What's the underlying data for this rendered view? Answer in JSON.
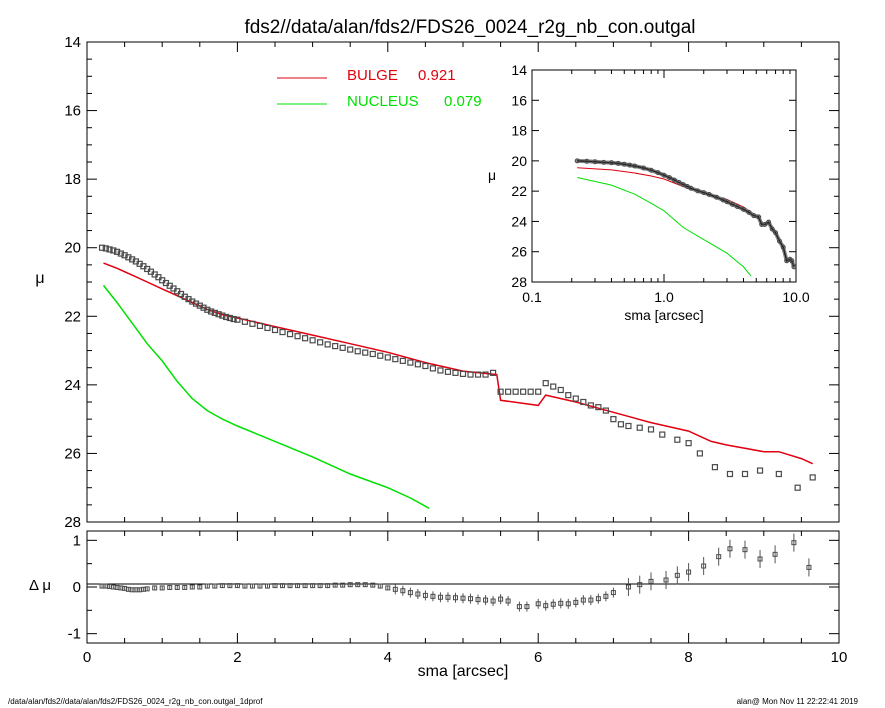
{
  "title": "fds2//data/alan/fds2/FDS26_0024_r2g_nb_con.outgal",
  "footer": {
    "left": "/data/alan/fds2//data/alan/fds2/FDS26_0024_r2g_nb_con.outgal_1dprof",
    "right": "alan@  Mon Nov 11 22:22:41 2019"
  },
  "colors": {
    "bulge": "#e0000f",
    "nucleus": "#00e000",
    "data_marker": "#4a4a4a",
    "axis": "#000000"
  },
  "chart_data": [
    {
      "id": "main",
      "type": "line",
      "xlabel": "sma [arcsec]",
      "ylabel": "μ",
      "xlim": [
        0,
        10
      ],
      "ylim": [
        28,
        14
      ],
      "x_ticks": [
        "0",
        "2",
        "4",
        "6",
        "8",
        "10"
      ],
      "y_ticks": [
        "14",
        "16",
        "18",
        "20",
        "22",
        "24",
        "26",
        "28"
      ],
      "legend": [
        {
          "name": "BULGE",
          "value": "0.921",
          "color": "#e0000f"
        },
        {
          "name": "NUCLEUS",
          "value": "0.079",
          "color": "#00e000"
        }
      ],
      "series": [
        {
          "name": "BULGE",
          "style": "line",
          "color": "#e0000f",
          "x": [
            0.22,
            0.4,
            0.6,
            0.8,
            1.0,
            1.2,
            1.4,
            1.6,
            1.8,
            2.0,
            2.5,
            3.0,
            3.5,
            4.0,
            4.5,
            5.0,
            5.45,
            5.5,
            6.0,
            6.1,
            6.5,
            7.0,
            7.5,
            8.0,
            8.3,
            8.5,
            9.0,
            9.2,
            9.5,
            9.65
          ],
          "y": [
            20.45,
            20.6,
            20.8,
            21.0,
            21.2,
            21.4,
            21.6,
            21.8,
            21.95,
            22.05,
            22.3,
            22.55,
            22.8,
            23.05,
            23.35,
            23.6,
            23.7,
            24.45,
            24.6,
            24.3,
            24.5,
            24.8,
            25.1,
            25.35,
            25.65,
            25.75,
            25.95,
            25.95,
            26.15,
            26.3
          ]
        },
        {
          "name": "NUCLEUS",
          "style": "line",
          "color": "#00e000",
          "x": [
            0.22,
            0.4,
            0.6,
            0.8,
            1.0,
            1.2,
            1.4,
            1.6,
            1.8,
            2.0,
            2.5,
            3.0,
            3.5,
            4.0,
            4.3,
            4.55
          ],
          "y": [
            21.1,
            21.6,
            22.2,
            22.8,
            23.3,
            23.9,
            24.4,
            24.75,
            25.0,
            25.2,
            25.65,
            26.1,
            26.6,
            27.0,
            27.3,
            27.6
          ]
        },
        {
          "name": "data",
          "style": "markers",
          "color": "#4a4a4a",
          "x": [
            0.2,
            0.25,
            0.3,
            0.35,
            0.4,
            0.45,
            0.5,
            0.55,
            0.6,
            0.65,
            0.7,
            0.75,
            0.8,
            0.85,
            0.9,
            0.95,
            1.0,
            1.05,
            1.1,
            1.15,
            1.2,
            1.25,
            1.3,
            1.35,
            1.4,
            1.45,
            1.5,
            1.55,
            1.6,
            1.65,
            1.7,
            1.75,
            1.8,
            1.85,
            1.9,
            1.95,
            2.0,
            2.1,
            2.2,
            2.3,
            2.4,
            2.5,
            2.6,
            2.7,
            2.8,
            2.9,
            3.0,
            3.1,
            3.2,
            3.3,
            3.4,
            3.5,
            3.6,
            3.7,
            3.8,
            3.9,
            4.0,
            4.1,
            4.2,
            4.3,
            4.4,
            4.5,
            4.6,
            4.7,
            4.8,
            4.9,
            5.0,
            5.1,
            5.2,
            5.3,
            5.4,
            5.5,
            5.6,
            5.7,
            5.8,
            5.9,
            6.0,
            6.1,
            6.2,
            6.3,
            6.4,
            6.5,
            6.6,
            6.7,
            6.8,
            6.9,
            7.0,
            7.1,
            7.2,
            7.35,
            7.5,
            7.65,
            7.85,
            8.0,
            8.15,
            8.35,
            8.55,
            8.75,
            8.95,
            9.2,
            9.45,
            9.65
          ],
          "y": [
            20.0,
            20.02,
            20.05,
            20.08,
            20.12,
            20.17,
            20.22,
            20.28,
            20.34,
            20.4,
            20.47,
            20.54,
            20.62,
            20.7,
            20.78,
            20.86,
            20.95,
            21.03,
            21.11,
            21.19,
            21.27,
            21.35,
            21.43,
            21.5,
            21.57,
            21.63,
            21.69,
            21.75,
            21.81,
            21.86,
            21.9,
            21.94,
            21.98,
            22.02,
            22.05,
            22.08,
            22.1,
            22.16,
            22.22,
            22.28,
            22.34,
            22.4,
            22.46,
            22.52,
            22.58,
            22.64,
            22.7,
            22.76,
            22.82,
            22.87,
            22.92,
            22.97,
            23.02,
            23.06,
            23.1,
            23.15,
            23.2,
            23.25,
            23.3,
            23.35,
            23.4,
            23.45,
            23.52,
            23.58,
            23.62,
            23.65,
            23.68,
            23.7,
            23.7,
            23.7,
            23.65,
            24.2,
            24.2,
            24.2,
            24.2,
            24.2,
            24.2,
            23.95,
            24.05,
            24.15,
            24.3,
            24.4,
            24.5,
            24.6,
            24.65,
            24.75,
            25.0,
            25.15,
            25.2,
            25.25,
            25.3,
            25.45,
            25.6,
            25.7,
            26.0,
            26.4,
            26.6,
            26.6,
            26.5,
            26.6,
            27.0,
            26.7
          ]
        }
      ]
    },
    {
      "id": "residual",
      "type": "scatter",
      "xlabel": "sma [arcsec]",
      "ylabel": "Δ μ",
      "xlim": [
        0,
        10
      ],
      "ylim": [
        -1.2,
        1.2
      ],
      "x_ticks": [
        "0",
        "2",
        "4",
        "6",
        "8",
        "10"
      ],
      "y_ticks": [
        "1",
        "0",
        "-1"
      ],
      "series": [
        {
          "name": "residual",
          "style": "markers_errorbars",
          "color": "#4a4a4a",
          "x": [
            0.2,
            0.25,
            0.3,
            0.35,
            0.4,
            0.45,
            0.5,
            0.55,
            0.6,
            0.65,
            0.7,
            0.75,
            0.8,
            0.9,
            1.0,
            1.1,
            1.2,
            1.3,
            1.4,
            1.5,
            1.6,
            1.7,
            1.8,
            1.9,
            2.0,
            2.1,
            2.2,
            2.3,
            2.4,
            2.5,
            2.6,
            2.7,
            2.8,
            2.9,
            3.0,
            3.1,
            3.2,
            3.3,
            3.4,
            3.5,
            3.6,
            3.7,
            3.8,
            3.9,
            4.0,
            4.1,
            4.2,
            4.3,
            4.4,
            4.5,
            4.6,
            4.7,
            4.8,
            4.9,
            5.0,
            5.1,
            5.2,
            5.3,
            5.4,
            5.5,
            5.6,
            5.75,
            5.85,
            6.0,
            6.1,
            6.2,
            6.3,
            6.4,
            6.5,
            6.6,
            6.7,
            6.8,
            6.9,
            7.0,
            7.2,
            7.35,
            7.5,
            7.7,
            7.85,
            8.0,
            8.2,
            8.4,
            8.55,
            8.75,
            8.95,
            9.15,
            9.4,
            9.6
          ],
          "y": [
            0.02,
            0.02,
            0.01,
            0.0,
            -0.01,
            -0.02,
            -0.03,
            -0.05,
            -0.06,
            -0.06,
            -0.06,
            -0.05,
            -0.04,
            -0.02,
            -0.02,
            -0.01,
            -0.01,
            -0.01,
            0.0,
            0.0,
            0.02,
            0.02,
            0.03,
            0.03,
            0.03,
            0.02,
            0.02,
            0.02,
            0.02,
            0.03,
            0.03,
            0.03,
            0.03,
            0.03,
            0.03,
            0.03,
            0.03,
            0.04,
            0.04,
            0.05,
            0.05,
            0.05,
            0.04,
            0.02,
            -0.02,
            -0.05,
            -0.08,
            -0.12,
            -0.15,
            -0.18,
            -0.2,
            -0.22,
            -0.22,
            -0.23,
            -0.24,
            -0.25,
            -0.27,
            -0.28,
            -0.3,
            -0.26,
            -0.3,
            -0.42,
            -0.42,
            -0.36,
            -0.4,
            -0.37,
            -0.35,
            -0.36,
            -0.33,
            -0.28,
            -0.28,
            -0.25,
            -0.2,
            -0.12,
            0.0,
            0.05,
            0.12,
            0.15,
            0.25,
            0.32,
            0.45,
            0.65,
            0.82,
            0.8,
            0.6,
            0.7,
            0.95,
            0.42
          ]
        }
      ]
    },
    {
      "id": "inset",
      "type": "line",
      "xlabel": "sma [arcsec]",
      "ylabel": "μ",
      "xscale": "log",
      "xlim": [
        0.1,
        10
      ],
      "ylim": [
        28,
        14
      ],
      "x_ticks": [
        "0.1",
        "1.0",
        "10.0"
      ],
      "y_ticks": [
        "14",
        "16",
        "18",
        "20",
        "22",
        "24",
        "26",
        "28"
      ],
      "series": [
        {
          "name": "BULGE",
          "style": "line",
          "color": "#e0000f",
          "x": [
            0.22,
            0.4,
            0.6,
            0.8,
            1.0,
            1.5,
            2.0,
            3.0,
            4.0,
            5.0,
            5.45
          ],
          "y": [
            20.45,
            20.6,
            20.8,
            21.0,
            21.2,
            21.8,
            22.05,
            22.55,
            23.05,
            23.6,
            23.7
          ]
        },
        {
          "name": "NUCLEUS",
          "style": "line",
          "color": "#00e000",
          "x": [
            0.22,
            0.4,
            0.6,
            0.8,
            1.0,
            1.4,
            2.0,
            3.0,
            4.0,
            4.55
          ],
          "y": [
            21.1,
            21.6,
            22.2,
            22.8,
            23.3,
            24.4,
            25.2,
            26.1,
            27.0,
            27.6
          ]
        },
        {
          "name": "data",
          "style": "markers",
          "color": "#4a4a4a",
          "x": [
            0.22,
            0.26,
            0.3,
            0.35,
            0.4,
            0.45,
            0.5,
            0.55,
            0.6,
            0.7,
            0.8,
            0.9,
            1.0,
            1.1,
            1.2,
            1.3,
            1.4,
            1.5,
            1.6,
            1.8,
            2.0,
            2.2,
            2.5,
            2.8,
            3.0,
            3.3,
            3.6,
            4.0,
            4.4,
            4.8,
            5.2,
            5.5,
            5.8,
            6.2,
            6.6,
            7.0,
            7.5,
            8.0,
            8.5,
            9.0,
            9.3,
            9.65
          ],
          "y": [
            20.0,
            20.03,
            20.06,
            20.1,
            20.12,
            20.17,
            20.22,
            20.28,
            20.34,
            20.47,
            20.62,
            20.78,
            20.95,
            21.11,
            21.27,
            21.43,
            21.57,
            21.69,
            21.81,
            21.98,
            22.1,
            22.22,
            22.4,
            22.58,
            22.7,
            22.87,
            23.02,
            23.2,
            23.4,
            23.62,
            23.7,
            24.2,
            24.2,
            24.05,
            24.5,
            24.75,
            25.3,
            25.7,
            26.6,
            26.5,
            26.6,
            27.0
          ]
        }
      ]
    }
  ]
}
